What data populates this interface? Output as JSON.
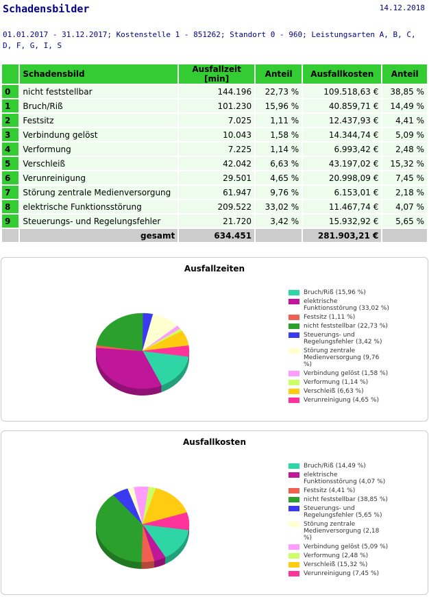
{
  "header": {
    "title": "Schadensbilder",
    "date": "14.12.2018",
    "filter": "01.01.2017 - 31.12.2017; Kostenstelle 1 - 851262; Standort 0 - 960; Leistungsarten A, B, C, D, F, G, I, S"
  },
  "table": {
    "columns": [
      "Schadensbild",
      "Ausfallzeit [min]",
      "Anteil",
      "Ausfallkosten",
      "Anteil"
    ],
    "rows": [
      [
        "0",
        "nicht feststellbar",
        "144.196",
        "22,73 %",
        "109.518,63 €",
        "38,85 %"
      ],
      [
        "1",
        "Bruch/Riß",
        "101.230",
        "15,96 %",
        "40.859,71 €",
        "14,49 %"
      ],
      [
        "2",
        "Festsitz",
        "7.025",
        "1,11 %",
        "12.437,93 €",
        "4,41 %"
      ],
      [
        "3",
        "Verbindung gelöst",
        "10.043",
        "1,58 %",
        "14.344,74 €",
        "5,09 %"
      ],
      [
        "4",
        "Verformung",
        "7.225",
        "1,14 %",
        "6.993,42 €",
        "2,48 %"
      ],
      [
        "5",
        "Verschleiß",
        "42.042",
        "6,63 %",
        "43.197,02 €",
        "15,32 %"
      ],
      [
        "6",
        "Verunreinigung",
        "29.501",
        "4,65 %",
        "20.998,09 €",
        "7,45 %"
      ],
      [
        "7",
        "Störung zentrale Medienversorgung",
        "61.947",
        "9,76 %",
        "6.153,01 €",
        "2,18 %"
      ],
      [
        "8",
        "elektrische Funktionsstörung",
        "209.522",
        "33,02 %",
        "11.467,74 €",
        "4,07 %"
      ],
      [
        "9",
        "Steuerungs- und Regelungsfehler",
        "21.720",
        "3,42 %",
        "15.932,92 €",
        "5,65 %"
      ]
    ],
    "total": {
      "label": "gesamt",
      "downtime": "634.451",
      "cost": "281.903,21 €"
    }
  },
  "chart_data": [
    {
      "type": "pie",
      "title": "Ausfallzeiten",
      "categories": [
        "Bruch/Riß",
        "elektrische Funktionsstörung",
        "Festsitz",
        "nicht feststellbar",
        "Steuerungs- und Regelungsfehler",
        "Störung zentrale Medienversorgung",
        "Verbindung gelöst",
        "Verformung",
        "Verschleiß",
        "Verunreinigung"
      ],
      "values": [
        15.96,
        33.02,
        1.11,
        22.73,
        3.42,
        9.76,
        1.58,
        1.14,
        6.63,
        4.65
      ],
      "value_labels": [
        "(15,96 %)",
        "(33,02 %)",
        "(1,11 %)",
        "(22,73 %)",
        "(3,42 %)",
        "(9,76 %)",
        "(1,58 %)",
        "(1,14 %)",
        "(6,63 %)",
        "(4,65 %)"
      ],
      "colors": [
        "#2dd6a4",
        "#c0169a",
        "#f06050",
        "#2ca02c",
        "#3a3af0",
        "#ffffd0",
        "#ff9cff",
        "#ccff66",
        "#ffcc11",
        "#ff3399"
      ]
    },
    {
      "type": "pie",
      "title": "Ausfallkosten",
      "categories": [
        "Bruch/Riß",
        "elektrische Funktionsstörung",
        "Festsitz",
        "nicht feststellbar",
        "Steuerungs- und Regelungsfehler",
        "Störung zentrale Medienversorgung",
        "Verbindung gelöst",
        "Verformung",
        "Verschleiß",
        "Verunreinigung"
      ],
      "values": [
        14.49,
        4.07,
        4.41,
        38.85,
        5.65,
        2.18,
        5.09,
        2.48,
        15.32,
        7.45
      ],
      "value_labels": [
        "(14,49 %)",
        "(4,07 %)",
        "(4,41 %)",
        "(38,85 %)",
        "(5,65 %)",
        "(2,18 %)",
        "(5,09 %)",
        "(2,48 %)",
        "(15,32 %)",
        "(7,45 %)"
      ],
      "colors": [
        "#2dd6a4",
        "#c0169a",
        "#f06050",
        "#2ca02c",
        "#3a3af0",
        "#ffffd0",
        "#ff9cff",
        "#ccff66",
        "#ffcc11",
        "#ff3399"
      ]
    }
  ]
}
